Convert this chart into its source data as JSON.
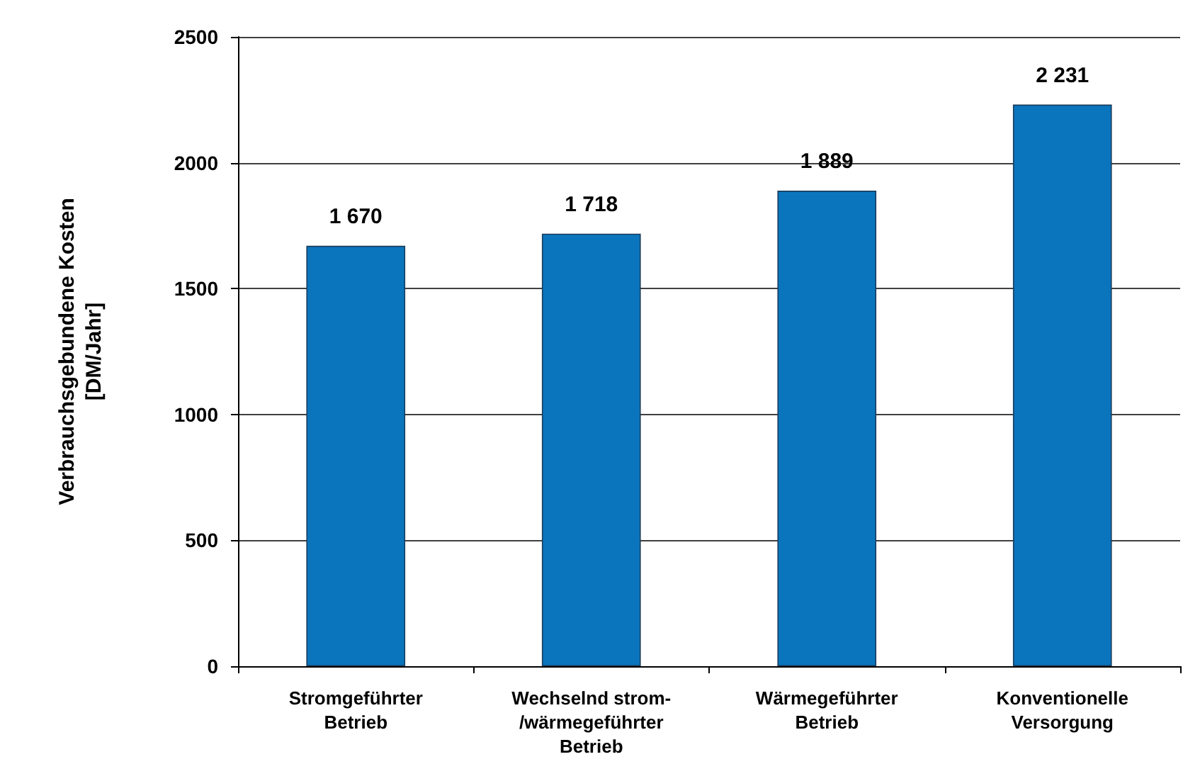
{
  "chart_data": {
    "type": "bar",
    "ylabel": "Verbrauchsgebundene Kosten\n[DM/Jahr]",
    "categories": [
      "Stromgeführter\nBetrieb",
      "Wechselnd strom-\n/wärmegeführter\nBetrieb",
      "Wärmegeführter\nBetrieb",
      "Konventionelle\nVersorgung"
    ],
    "values": [
      1670,
      1718,
      1889,
      2231
    ],
    "value_labels": [
      "1 670",
      "1 718",
      "1 889",
      "2 231"
    ],
    "color": "#0a75bd",
    "ylim": [
      0,
      2500
    ],
    "yticks": [
      0,
      500,
      1000,
      1500,
      2000,
      2500
    ],
    "grid": "y"
  }
}
